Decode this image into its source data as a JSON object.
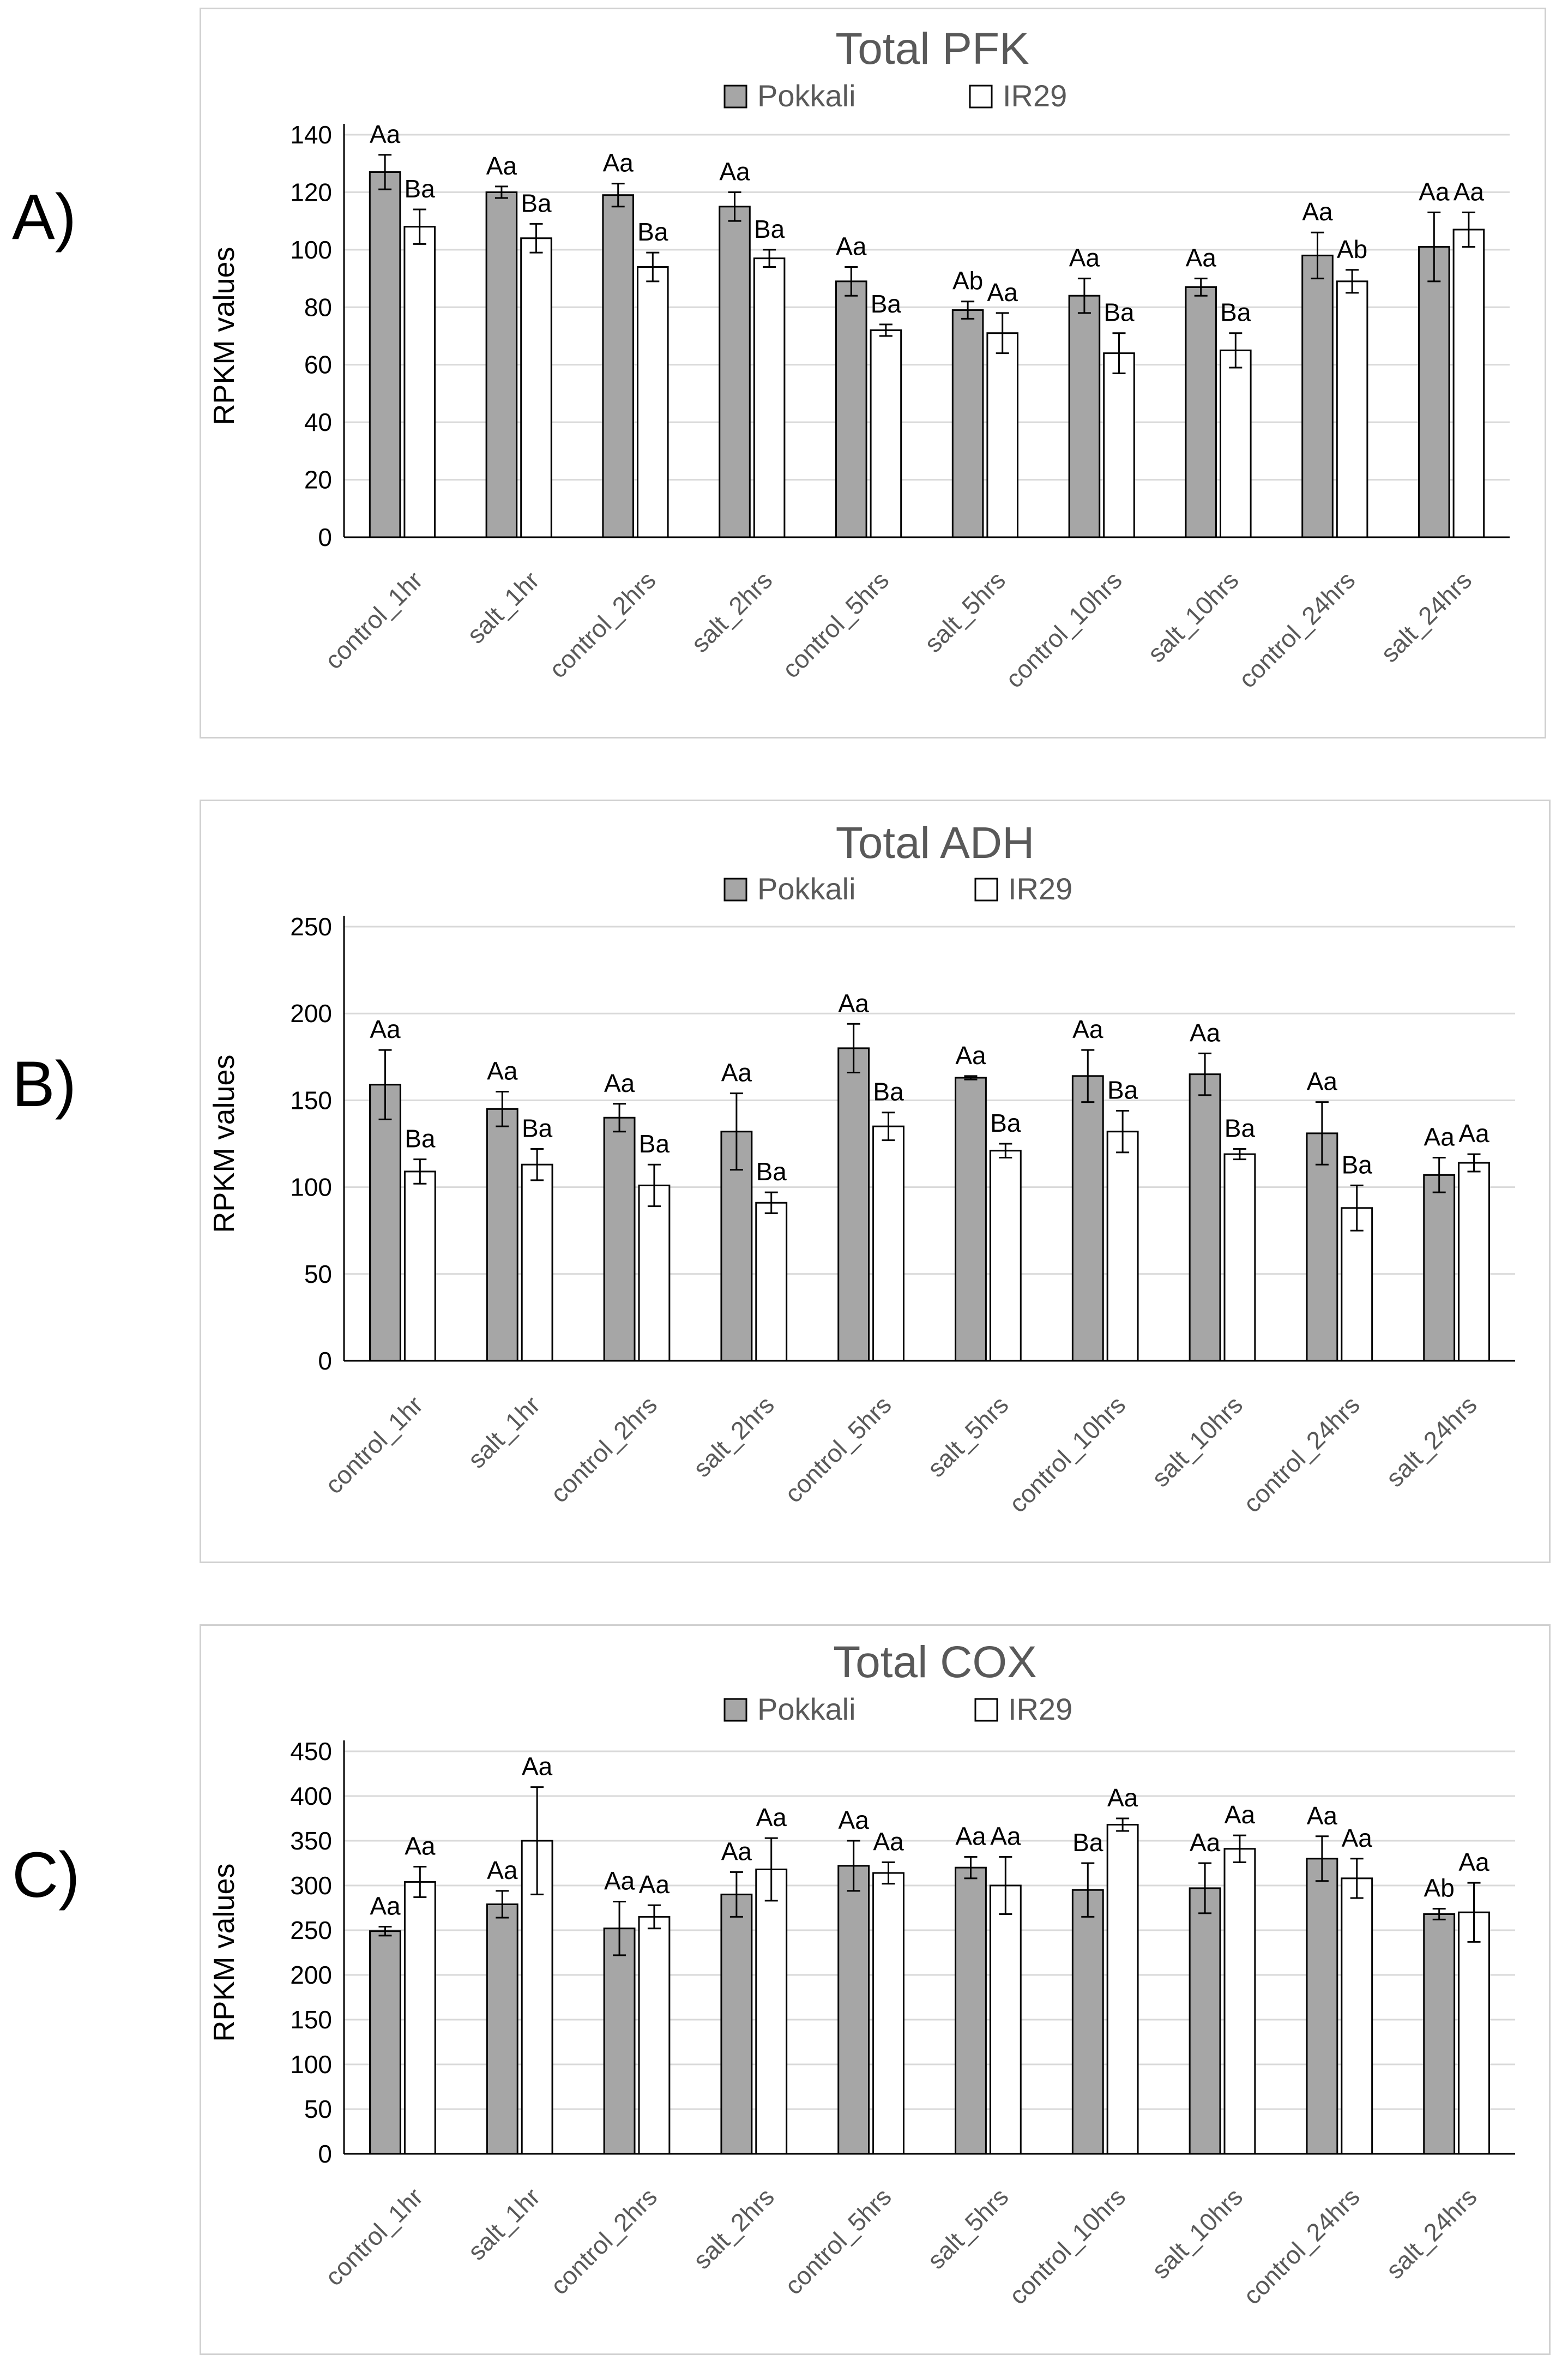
{
  "panel_labels": [
    "A)",
    "B)",
    "C)"
  ],
  "colors": {
    "pokkali": "#a6a6a6",
    "ir29": "#ffffff",
    "axis": "#000000",
    "grid": "#d9d9d9",
    "title": "#595959"
  },
  "chart_data": [
    {
      "type": "bar",
      "title": "Total PFK",
      "ylabel": "RPKM values",
      "xlabel": "",
      "ylim": [
        0,
        140
      ],
      "yticks": [
        0,
        20,
        40,
        60,
        80,
        100,
        120,
        140
      ],
      "grid": true,
      "legend_position": "top",
      "categories": [
        "control_1hr",
        "salt_1hr",
        "control_2hrs",
        "salt_2hrs",
        "control_5hrs",
        "salt_5hrs",
        "control_10hrs",
        "salt_10hrs",
        "control_24hrs",
        "salt_24hrs"
      ],
      "series": [
        {
          "name": "Pokkali",
          "values": [
            127,
            120,
            119,
            115,
            89,
            79,
            84,
            87,
            98,
            101
          ],
          "errors": [
            6,
            2,
            4,
            5,
            5,
            3,
            6,
            3,
            8,
            12
          ],
          "labels": [
            "Aa",
            "Aa",
            "Aa",
            "Aa",
            "Aa",
            "Ab",
            "Aa",
            "Aa",
            "Aa",
            "Aa"
          ]
        },
        {
          "name": "IR29",
          "values": [
            108,
            104,
            94,
            97,
            72,
            71,
            64,
            65,
            89,
            107
          ],
          "errors": [
            6,
            5,
            5,
            3,
            2,
            7,
            7,
            6,
            4,
            6
          ],
          "labels": [
            "Ba",
            "Ba",
            "Ba",
            "Ba",
            "Ba",
            "Aa",
            "Ba",
            "Ba",
            "Ab",
            "Aa"
          ]
        }
      ]
    },
    {
      "type": "bar",
      "title": "Total ADH",
      "ylabel": "RPKM values",
      "xlabel": "",
      "ylim": [
        0,
        250
      ],
      "yticks": [
        0,
        50,
        100,
        150,
        200,
        250
      ],
      "grid": true,
      "legend_position": "top",
      "categories": [
        "control_1hr",
        "salt_1hr",
        "control_2hrs",
        "salt_2hrs",
        "control_5hrs",
        "salt_5hrs",
        "control_10hrs",
        "salt_10hrs",
        "control_24hrs",
        "salt_24hrs"
      ],
      "series": [
        {
          "name": "Pokkali",
          "values": [
            159,
            145,
            140,
            132,
            180,
            163,
            164,
            165,
            131,
            107
          ],
          "errors": [
            20,
            10,
            8,
            22,
            14,
            1,
            15,
            12,
            18,
            10
          ],
          "labels": [
            "Aa",
            "Aa",
            "Aa",
            "Aa",
            "Aa",
            "Aa",
            "Aa",
            "Aa",
            "Aa",
            "Aa"
          ]
        },
        {
          "name": "IR29",
          "values": [
            109,
            113,
            101,
            91,
            135,
            121,
            132,
            119,
            88,
            114
          ],
          "errors": [
            7,
            9,
            12,
            6,
            8,
            4,
            12,
            3,
            13,
            5
          ],
          "labels": [
            "Ba",
            "Ba",
            "Ba",
            "Ba",
            "Ba",
            "Ba",
            "Ba",
            "Ba",
            "Ba",
            "Aa"
          ]
        }
      ]
    },
    {
      "type": "bar",
      "title": "Total COX",
      "ylabel": "RPKM values",
      "xlabel": "",
      "ylim": [
        0,
        450
      ],
      "yticks": [
        0,
        50,
        100,
        150,
        200,
        250,
        300,
        350,
        400,
        450
      ],
      "grid": true,
      "legend_position": "top",
      "categories": [
        "control_1hr",
        "salt_1hr",
        "control_2hrs",
        "salt_2hrs",
        "control_5hrs",
        "salt_5hrs",
        "control_10hrs",
        "salt_10hrs",
        "control_24hrs",
        "salt_24hrs"
      ],
      "series": [
        {
          "name": "Pokkali",
          "values": [
            249,
            279,
            252,
            290,
            322,
            320,
            295,
            297,
            330,
            268
          ],
          "errors": [
            5,
            15,
            30,
            25,
            28,
            12,
            30,
            28,
            25,
            6
          ],
          "labels": [
            "Aa",
            "Aa",
            "Aa",
            "Aa",
            "Aa",
            "Aa",
            "Ba",
            "Aa",
            "Aa",
            "Ab"
          ]
        },
        {
          "name": "IR29",
          "values": [
            304,
            350,
            265,
            318,
            314,
            300,
            368,
            341,
            308,
            270
          ],
          "errors": [
            17,
            60,
            13,
            35,
            12,
            32,
            7,
            15,
            22,
            33
          ],
          "labels": [
            "Aa",
            "Aa",
            "Aa",
            "Aa",
            "Aa",
            "Aa",
            "Aa",
            "Aa",
            "Aa",
            "Aa"
          ]
        }
      ]
    }
  ]
}
